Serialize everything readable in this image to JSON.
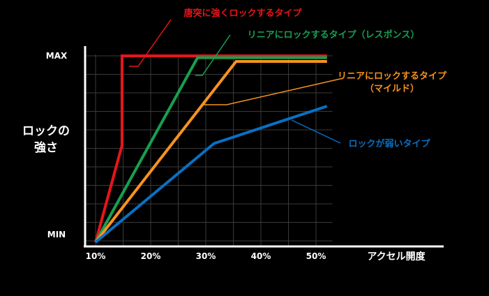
{
  "chart_data": {
    "type": "line",
    "xlabel": "アクセル開度",
    "ylabel_line1": "ロックの",
    "ylabel_line2": "強さ",
    "x_ticks": [
      "10%",
      "20%",
      "30%",
      "40%",
      "50%"
    ],
    "x_tick_values": [
      10,
      20,
      30,
      40,
      50
    ],
    "y_ticks": [
      "MAX",
      "MIN"
    ],
    "y_tick_values": [
      1.0,
      0.0
    ],
    "xlim": [
      10,
      53
    ],
    "ylim": [
      0,
      1.0
    ],
    "grid": true,
    "series": [
      {
        "name": "唐突に強くロックするタイプ",
        "color": "#e8141b",
        "points": [
          [
            10,
            0.0
          ],
          [
            14.8,
            0.52
          ],
          [
            14.8,
            1.0
          ],
          [
            52,
            1.0
          ]
        ]
      },
      {
        "name": "リニアにロックするタイプ（レスポンス）",
        "color": "#16a050",
        "points": [
          [
            10,
            0.0
          ],
          [
            28.5,
            0.99
          ],
          [
            52,
            0.99
          ]
        ]
      },
      {
        "name": "リニアにロックするタイプ（マイルド）",
        "color": "#f7931e",
        "points": [
          [
            10,
            0.0
          ],
          [
            35.5,
            0.97
          ],
          [
            52,
            0.97
          ]
        ]
      },
      {
        "name": "ロックが弱いタイプ",
        "color": "#0a6fc2",
        "points": [
          [
            10,
            0.0
          ],
          [
            31.5,
            0.53
          ],
          [
            52,
            0.73
          ]
        ]
      }
    ],
    "annotations": [
      {
        "series": 0,
        "line1": "唐突に強くロックするタイプ",
        "line2": ""
      },
      {
        "series": 1,
        "line1": "リニアにロックするタイプ（レスポンス）",
        "line2": ""
      },
      {
        "series": 2,
        "line1": "リニアにロックするタイプ",
        "line2": "（マイルド）"
      },
      {
        "series": 3,
        "line1": "ロックが弱いタイプ",
        "line2": ""
      }
    ]
  }
}
